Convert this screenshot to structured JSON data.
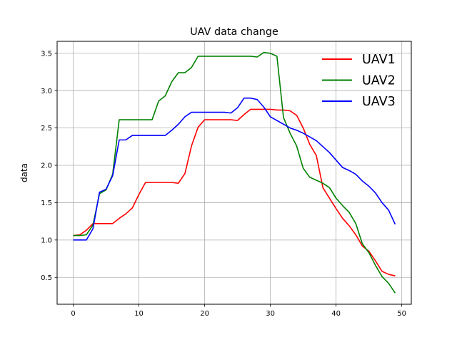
{
  "chart_data": {
    "type": "line",
    "title": "UAV data change",
    "xlabel": "",
    "ylabel": "data",
    "xlim": [
      -2.45,
      51.45
    ],
    "ylim": [
      0.14,
      3.66
    ],
    "xticks": [
      0,
      10,
      20,
      30,
      40,
      50
    ],
    "yticks": [
      0.5,
      1.0,
      1.5,
      2.0,
      2.5,
      3.0,
      3.5
    ],
    "xtick_labels": [
      "0",
      "10",
      "20",
      "30",
      "40",
      "50"
    ],
    "ytick_labels": [
      "0.5",
      "1.0",
      "1.5",
      "2.0",
      "2.5",
      "3.0",
      "3.5"
    ],
    "grid": true,
    "legend_position": "top-right",
    "series": [
      {
        "name": "UAV1",
        "color": "#ff0000",
        "x": [
          0,
          1,
          2,
          3,
          4,
          5,
          6,
          7,
          8,
          9,
          10,
          11,
          12,
          13,
          14,
          15,
          16,
          17,
          18,
          19,
          20,
          21,
          22,
          23,
          24,
          25,
          26,
          27,
          28,
          29,
          30,
          31,
          32,
          33,
          34,
          35,
          36,
          37,
          38,
          39,
          40,
          41,
          42,
          43,
          44,
          45,
          46,
          47,
          48,
          49
        ],
        "y": [
          1.06,
          1.07,
          1.13,
          1.22,
          1.22,
          1.22,
          1.22,
          1.29,
          1.35,
          1.43,
          1.61,
          1.77,
          1.77,
          1.77,
          1.77,
          1.77,
          1.76,
          1.89,
          2.26,
          2.51,
          2.61,
          2.61,
          2.61,
          2.61,
          2.61,
          2.6,
          2.68,
          2.75,
          2.75,
          2.75,
          2.75,
          2.74,
          2.74,
          2.73,
          2.67,
          2.5,
          2.28,
          2.13,
          1.7,
          1.56,
          1.42,
          1.29,
          1.19,
          1.07,
          0.92,
          0.85,
          0.72,
          0.58,
          0.54,
          0.52
        ]
      },
      {
        "name": "UAV2",
        "color": "#008000",
        "x": [
          0,
          1,
          2,
          3,
          4,
          5,
          6,
          7,
          8,
          9,
          10,
          11,
          12,
          13,
          14,
          15,
          16,
          17,
          18,
          19,
          20,
          21,
          22,
          23,
          24,
          25,
          26,
          27,
          28,
          29,
          30,
          31,
          32,
          33,
          34,
          35,
          36,
          37,
          38,
          39,
          40,
          41,
          42,
          43,
          44,
          45,
          46,
          47,
          48,
          49
        ],
        "y": [
          1.06,
          1.06,
          1.07,
          1.2,
          1.62,
          1.67,
          1.88,
          2.61,
          2.61,
          2.61,
          2.61,
          2.61,
          2.61,
          2.86,
          2.93,
          3.12,
          3.24,
          3.24,
          3.31,
          3.46,
          3.46,
          3.46,
          3.46,
          3.46,
          3.46,
          3.46,
          3.46,
          3.46,
          3.45,
          3.51,
          3.5,
          3.46,
          2.64,
          2.43,
          2.26,
          1.96,
          1.84,
          1.8,
          1.76,
          1.7,
          1.56,
          1.46,
          1.37,
          1.22,
          0.95,
          0.83,
          0.66,
          0.51,
          0.42,
          0.29
        ]
      },
      {
        "name": "UAV3",
        "color": "#0000ff",
        "x": [
          0,
          1,
          2,
          3,
          4,
          5,
          6,
          7,
          8,
          9,
          10,
          11,
          12,
          13,
          14,
          15,
          16,
          17,
          18,
          19,
          20,
          21,
          22,
          23,
          24,
          25,
          26,
          27,
          28,
          29,
          30,
          31,
          32,
          33,
          34,
          35,
          36,
          37,
          38,
          39,
          40,
          41,
          42,
          43,
          44,
          45,
          46,
          47,
          48,
          49
        ],
        "y": [
          1.0,
          1.0,
          1.0,
          1.15,
          1.64,
          1.68,
          1.86,
          2.34,
          2.34,
          2.4,
          2.4,
          2.4,
          2.4,
          2.4,
          2.4,
          2.47,
          2.55,
          2.65,
          2.71,
          2.71,
          2.71,
          2.71,
          2.71,
          2.71,
          2.7,
          2.77,
          2.9,
          2.9,
          2.88,
          2.78,
          2.65,
          2.6,
          2.55,
          2.5,
          2.47,
          2.43,
          2.38,
          2.33,
          2.25,
          2.17,
          2.07,
          1.97,
          1.93,
          1.88,
          1.79,
          1.72,
          1.63,
          1.5,
          1.4,
          1.21
        ]
      }
    ]
  }
}
